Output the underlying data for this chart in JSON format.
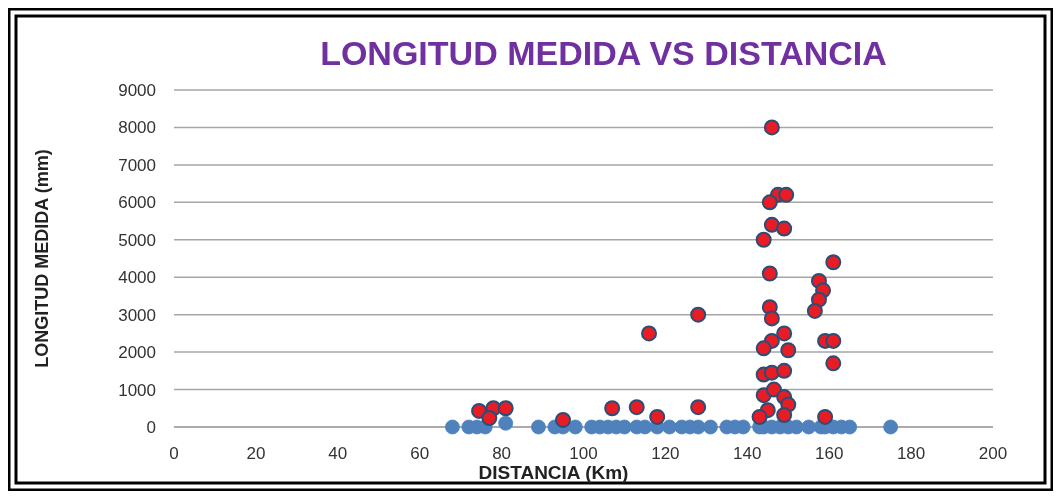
{
  "chart_data": {
    "type": "scatter",
    "title": "LONGITUD MEDIDA VS DISTANCIA",
    "xlabel": "DISTANCIA (Km)",
    "ylabel": "LONGITUD MEDIDA (mm)",
    "xlim": [
      0,
      200
    ],
    "xticks": [
      0,
      20,
      40,
      60,
      80,
      100,
      120,
      140,
      160,
      180,
      200
    ],
    "ylim": [
      0,
      9000
    ],
    "yticks": [
      0,
      1000,
      2000,
      3000,
      4000,
      5000,
      6000,
      7000,
      8000,
      9000
    ],
    "grid": "y",
    "marker": "circle",
    "series": [
      {
        "color": "#4f81bd",
        "x": [
          68,
          72,
          74,
          76,
          81,
          89,
          93,
          95,
          98,
          102,
          104,
          106,
          108,
          110,
          113,
          115,
          118,
          121,
          124,
          126,
          128,
          131,
          135,
          137,
          139,
          143,
          144,
          146,
          148,
          150,
          152,
          155,
          158,
          159,
          161,
          163,
          165,
          175
        ],
        "values": [
          0,
          0,
          0,
          0,
          100,
          0,
          0,
          0,
          0,
          0,
          0,
          0,
          0,
          0,
          0,
          0,
          0,
          0,
          0,
          0,
          0,
          0,
          0,
          0,
          0,
          0,
          0,
          0,
          0,
          0,
          0,
          0,
          0,
          0,
          0,
          0,
          0,
          0
        ]
      },
      {
        "color": "#e81c24",
        "x": [
          146,
          147.5,
          149.5,
          145.5,
          146,
          149,
          144,
          161,
          145.5,
          157.5,
          158.5,
          157.5,
          156.5,
          145.5,
          146,
          116,
          128,
          149,
          146,
          144,
          150,
          159,
          161,
          161,
          144,
          146,
          149,
          144,
          146.5,
          149,
          150,
          145,
          143,
          149,
          113,
          128,
          118,
          159,
          74.5,
          78,
          81,
          77,
          95,
          107
        ],
        "values": [
          8000,
          6200,
          6200,
          6000,
          5400,
          5300,
          5000,
          4400,
          4100,
          3900,
          3650,
          3400,
          3100,
          3200,
          2900,
          2500,
          3000,
          2500,
          2300,
          2100,
          2050,
          2300,
          2300,
          1700,
          1400,
          1450,
          1500,
          850,
          1000,
          800,
          600,
          450,
          270,
          320,
          530,
          530,
          270,
          270,
          430,
          500,
          500,
          240,
          190,
          500
        ]
      }
    ]
  }
}
